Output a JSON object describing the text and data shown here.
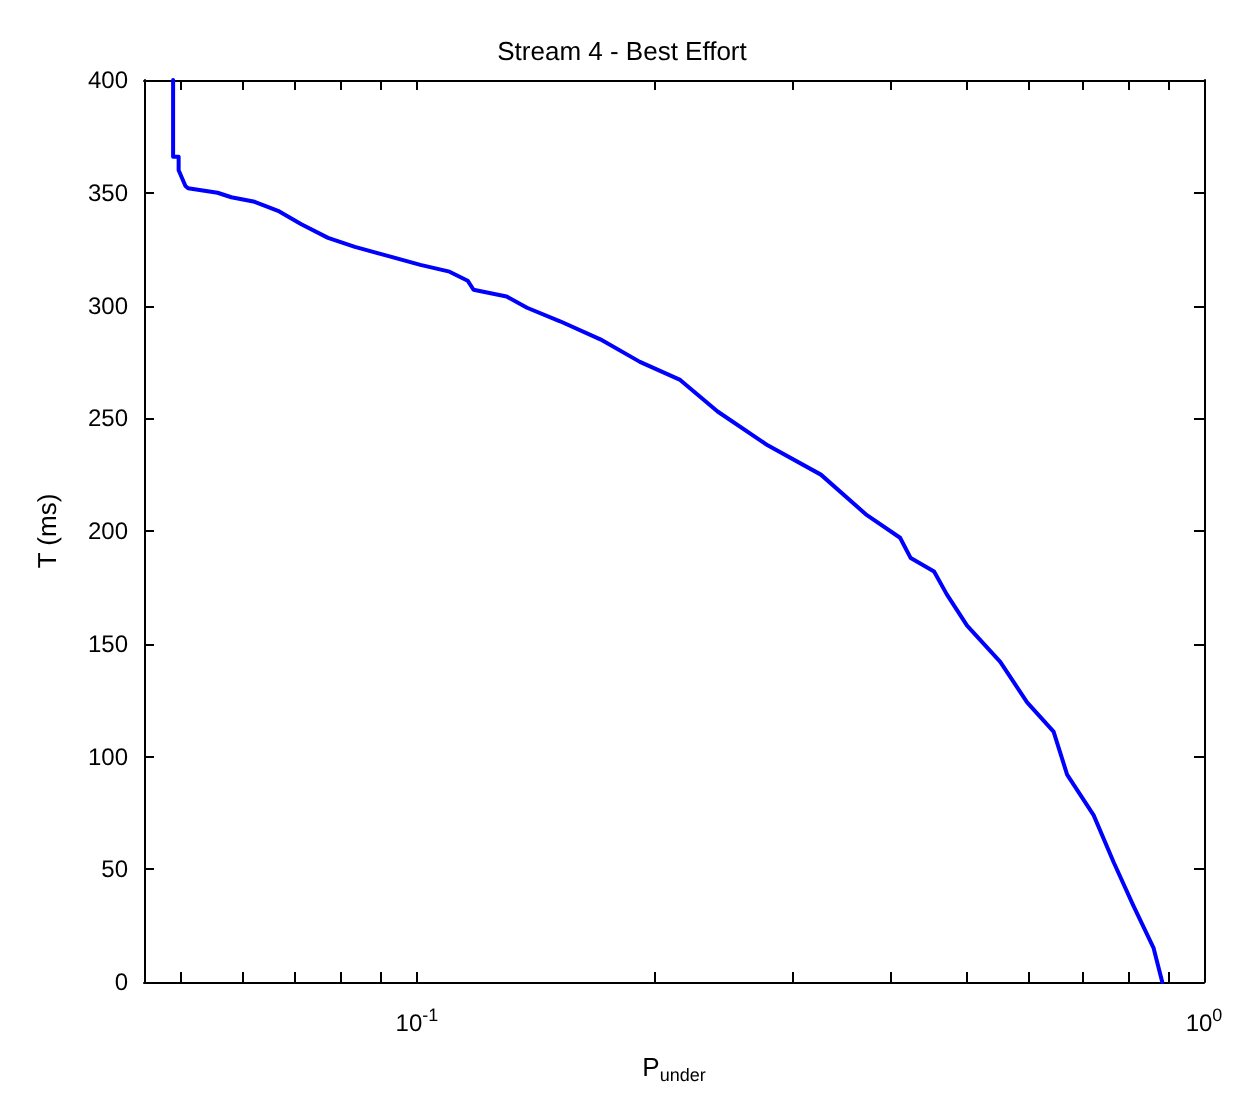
{
  "chart_data": {
    "type": "line",
    "title": "Stream 4 - Best Effort",
    "xlabel": "P$_{under}$",
    "ylabel": "T (ms)",
    "log": "x",
    "xlim": [
      0.045,
      1
    ],
    "ylim": [
      0,
      400
    ],
    "xticks": [
      {
        "value": 0.05,
        "label": null
      },
      {
        "value": 0.06,
        "label": null
      },
      {
        "value": 0.07,
        "label": null
      },
      {
        "value": 0.08,
        "label": null
      },
      {
        "value": 0.09,
        "label": null
      },
      {
        "value": 0.1,
        "label": "10$^{-1}$"
      },
      {
        "value": 0.2,
        "label": null
      },
      {
        "value": 0.3,
        "label": null
      },
      {
        "value": 0.4,
        "label": null
      },
      {
        "value": 0.5,
        "label": null
      },
      {
        "value": 0.6,
        "label": null
      },
      {
        "value": 0.7,
        "label": null
      },
      {
        "value": 0.8,
        "label": null
      },
      {
        "value": 0.9,
        "label": null
      },
      {
        "value": 1,
        "label": "10$^{0}$"
      }
    ],
    "yticks": [
      0,
      50,
      100,
      150,
      200,
      250,
      300,
      350,
      400
    ],
    "grid": false,
    "marker": "none",
    "line_style": "solid",
    "series": [
      {
        "color": "#0000ff",
        "x": [
          0.049,
          0.049,
          0.0498,
          0.0498,
          0.0508,
          0.0512,
          0.0558,
          0.0581,
          0.0622,
          0.0666,
          0.0713,
          0.0771,
          0.0834,
          0.0918,
          0.101,
          0.11,
          0.116,
          0.118,
          0.13,
          0.138,
          0.152,
          0.171,
          0.192,
          0.216,
          0.241,
          0.279,
          0.326,
          0.373,
          0.411,
          0.424,
          0.454,
          0.471,
          0.5,
          0.551,
          0.596,
          0.644,
          0.67,
          0.724,
          0.768,
          0.813,
          0.863,
          0.885
        ],
        "values": [
          400,
          366,
          366,
          360,
          353,
          352,
          350,
          348,
          346,
          342,
          336,
          330,
          326,
          322,
          318,
          315,
          311,
          307,
          304,
          299,
          293,
          285,
          275,
          267,
          253,
          238,
          225,
          207,
          197,
          188,
          182,
          172,
          158,
          142,
          124,
          111,
          92,
          74,
          53,
          34,
          15,
          0
        ]
      }
    ]
  }
}
